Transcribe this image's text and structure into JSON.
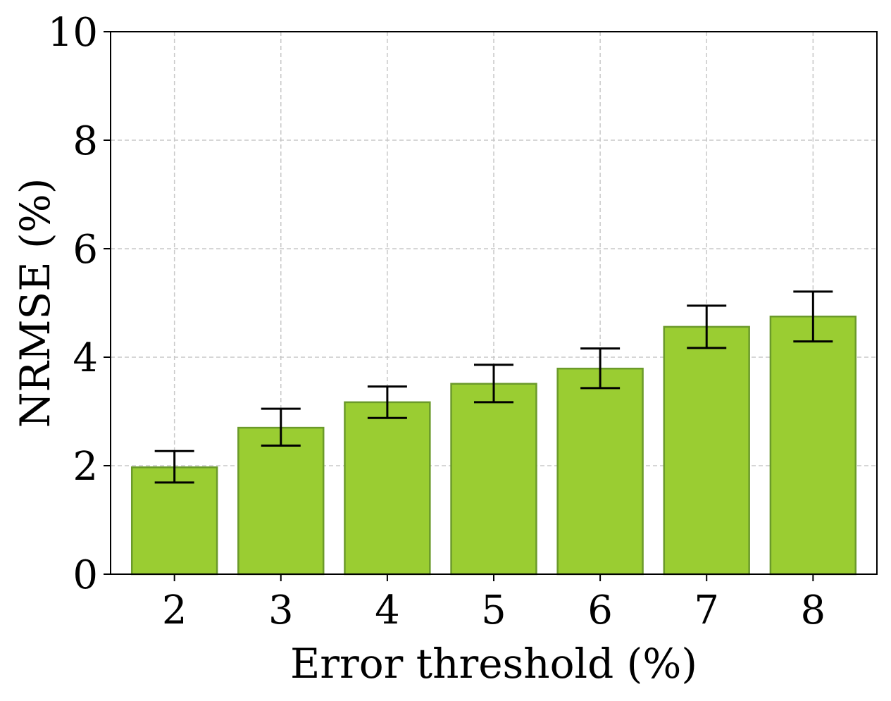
{
  "chart_data": {
    "type": "bar",
    "title": "",
    "xlabel": "Error threshold (%)",
    "ylabel": "NRMSE (%)",
    "categories": [
      "2",
      "3",
      "4",
      "5",
      "6",
      "7",
      "8"
    ],
    "values": [
      1.97,
      2.7,
      3.17,
      3.51,
      3.79,
      4.56,
      4.75
    ],
    "error_low": [
      1.69,
      2.37,
      2.88,
      3.17,
      3.43,
      4.17,
      4.29
    ],
    "error_high": [
      2.27,
      3.05,
      3.46,
      3.86,
      4.16,
      4.95,
      5.21
    ],
    "ylim": [
      0,
      10
    ],
    "yticks": [
      "0",
      "2",
      "4",
      "6",
      "8",
      "10"
    ],
    "grid": true,
    "bar_color": "#9acd32",
    "bar_edge_color": "#6b9a2a",
    "error_bar_color": "#000000",
    "grid_color": "#c8c8c8"
  }
}
